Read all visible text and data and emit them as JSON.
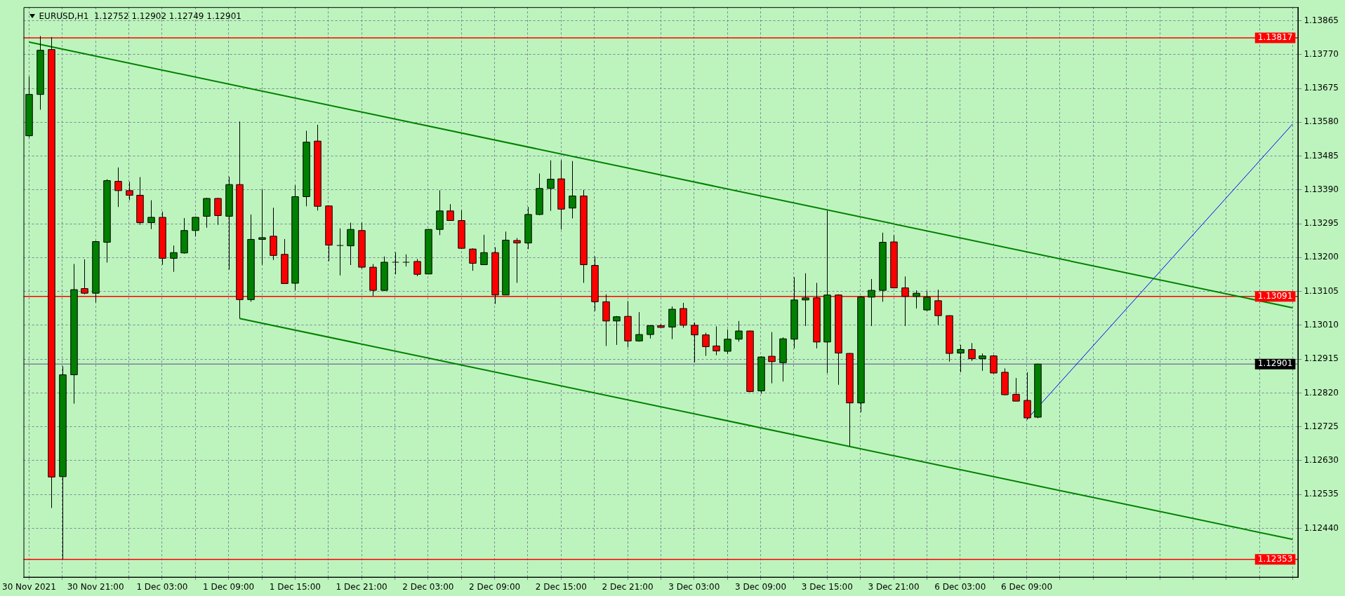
{
  "chart_data": {
    "type": "candlestick",
    "title": "EURUSD,H1  1.12752 1.12902 1.12749 1.12901",
    "categories": [
      "30 Nov 2021",
      null,
      null,
      null,
      null,
      null,
      "30 Nov 21:00",
      null,
      null,
      null,
      null,
      null,
      "1 Dec 03:00",
      null,
      null,
      null,
      null,
      null,
      "1 Dec 09:00",
      null,
      null,
      null,
      null,
      null,
      "1 Dec 15:00",
      null,
      null,
      null,
      null,
      null,
      "1 Dec 21:00",
      null,
      null,
      null,
      null,
      null,
      "2 Dec 03:00",
      null,
      null,
      null,
      null,
      null,
      "2 Dec 09:00",
      null,
      null,
      null,
      null,
      null,
      "2 Dec 15:00",
      null,
      null,
      null,
      null,
      null,
      "2 Dec 21:00",
      null,
      null,
      null,
      null,
      null,
      "3 Dec 03:00",
      null,
      null,
      null,
      null,
      null,
      "3 Dec 09:00",
      null,
      null,
      null,
      null,
      null,
      "3 Dec 15:00",
      null,
      null,
      null,
      null,
      null,
      "3 Dec 21:00",
      null,
      null,
      null,
      null,
      null,
      "6 Dec 03:00",
      null,
      null,
      null,
      null,
      null,
      "6 Dec 09:00",
      null,
      null,
      null,
      null,
      null,
      null,
      null,
      null,
      null,
      null,
      null,
      null,
      null,
      null,
      null,
      null,
      null,
      null,
      null,
      null,
      null,
      null,
      null,
      null
    ],
    "ohlc": [
      [
        1.13542,
        1.13708,
        1.13537,
        1.13658
      ],
      [
        1.13658,
        1.13822,
        1.13615,
        1.13782
      ],
      [
        1.13784,
        1.13819,
        1.12497,
        1.12584
      ],
      [
        1.12585,
        1.12895,
        1.12353,
        1.12871
      ],
      [
        1.12871,
        1.13182,
        1.1279,
        1.1311
      ],
      [
        1.13113,
        1.13195,
        1.13097,
        1.131
      ],
      [
        1.131,
        1.13247,
        1.13074,
        1.13245
      ],
      [
        1.13243,
        1.1342,
        1.13186,
        1.13416
      ],
      [
        1.13414,
        1.13453,
        1.13342,
        1.13388
      ],
      [
        1.13388,
        1.13413,
        1.13361,
        1.13375
      ],
      [
        1.13375,
        1.13426,
        1.13292,
        1.13298
      ],
      [
        1.13298,
        1.13361,
        1.1328,
        1.13313
      ],
      [
        1.13313,
        1.13329,
        1.1318,
        1.13198
      ],
      [
        1.13198,
        1.13234,
        1.1316,
        1.13214
      ],
      [
        1.13213,
        1.13311,
        1.13211,
        1.13276
      ],
      [
        1.13276,
        1.13315,
        1.13259,
        1.13313
      ],
      [
        1.13316,
        1.13368,
        1.13284,
        1.13366
      ],
      [
        1.13366,
        1.13368,
        1.13292,
        1.13318
      ],
      [
        1.13316,
        1.13427,
        1.13166,
        1.13405
      ],
      [
        1.13405,
        1.13582,
        1.13029,
        1.13082
      ],
      [
        1.13082,
        1.13321,
        1.13076,
        1.13251
      ],
      [
        1.13251,
        1.13391,
        1.1318,
        1.13256
      ],
      [
        1.1326,
        1.1334,
        1.13193,
        1.13206
      ],
      [
        1.13209,
        1.13252,
        1.13127,
        1.13127
      ],
      [
        1.13128,
        1.13403,
        1.13108,
        1.13371
      ],
      [
        1.13371,
        1.13556,
        1.13344,
        1.13524
      ],
      [
        1.13527,
        1.13573,
        1.13332,
        1.13344
      ],
      [
        1.13345,
        1.13345,
        1.1319,
        1.13235
      ],
      [
        1.13234,
        1.13282,
        1.1315,
        1.13234
      ],
      [
        1.13233,
        1.13298,
        1.13179,
        1.13279
      ],
      [
        1.13276,
        1.13298,
        1.13169,
        1.13173
      ],
      [
        1.13173,
        1.13182,
        1.13092,
        1.13108
      ],
      [
        1.13108,
        1.13203,
        1.13106,
        1.13187
      ],
      [
        1.13187,
        1.13215,
        1.13153,
        1.13187
      ],
      [
        1.13187,
        1.13209,
        1.13175,
        1.13187
      ],
      [
        1.13189,
        1.13196,
        1.13148,
        1.13153
      ],
      [
        1.13154,
        1.1328,
        1.13153,
        1.13279
      ],
      [
        1.13279,
        1.13389,
        1.13263,
        1.13331
      ],
      [
        1.13331,
        1.1335,
        1.13303,
        1.13304
      ],
      [
        1.13304,
        1.13333,
        1.13224,
        1.13226
      ],
      [
        1.13224,
        1.13226,
        1.13163,
        1.13184
      ],
      [
        1.1318,
        1.13264,
        1.13179,
        1.13214
      ],
      [
        1.13214,
        1.13229,
        1.1307,
        1.13095
      ],
      [
        1.13095,
        1.13273,
        1.13095,
        1.13249
      ],
      [
        1.13248,
        1.13255,
        1.13129,
        1.13241
      ],
      [
        1.13241,
        1.13342,
        1.13224,
        1.13321
      ],
      [
        1.13321,
        1.13436,
        1.13319,
        1.13394
      ],
      [
        1.13394,
        1.13473,
        1.13331,
        1.1342
      ],
      [
        1.13421,
        1.13473,
        1.13279,
        1.13336
      ],
      [
        1.13339,
        1.13471,
        1.1331,
        1.13373
      ],
      [
        1.13373,
        1.1339,
        1.13129,
        1.1318
      ],
      [
        1.13178,
        1.13203,
        1.1305,
        1.13076
      ],
      [
        1.13076,
        1.13097,
        1.12952,
        1.13022
      ],
      [
        1.13022,
        1.13036,
        1.12955,
        1.13034
      ],
      [
        1.13035,
        1.13078,
        1.12948,
        1.12966
      ],
      [
        1.12966,
        1.13047,
        1.12964,
        1.12984
      ],
      [
        1.12984,
        1.13011,
        1.12973,
        1.13009
      ],
      [
        1.13009,
        1.13013,
        1.13003,
        1.13004
      ],
      [
        1.13005,
        1.13063,
        1.12971,
        1.13055
      ],
      [
        1.13057,
        1.13073,
        1.13003,
        1.1301
      ],
      [
        1.1301,
        1.13018,
        1.12906,
        1.12983
      ],
      [
        1.12983,
        1.12989,
        1.12924,
        1.1295
      ],
      [
        1.12952,
        1.13007,
        1.12926,
        1.12938
      ],
      [
        1.12937,
        1.12998,
        1.12929,
        1.12971
      ],
      [
        1.12971,
        1.13022,
        1.12964,
        1.12994
      ],
      [
        1.12994,
        1.12995,
        1.12822,
        1.12824
      ],
      [
        1.12826,
        1.12923,
        1.12818,
        1.12921
      ],
      [
        1.12923,
        1.12991,
        1.12847,
        1.12908
      ],
      [
        1.12905,
        1.12976,
        1.12852,
        1.12972
      ],
      [
        1.12971,
        1.13145,
        1.12945,
        1.13081
      ],
      [
        1.13081,
        1.13156,
        1.13008,
        1.13087
      ],
      [
        1.13087,
        1.13129,
        1.12945,
        1.12963
      ],
      [
        1.12963,
        1.13331,
        1.12876,
        1.13095
      ],
      [
        1.13095,
        1.13097,
        1.12843,
        1.12932
      ],
      [
        1.12931,
        1.12932,
        1.12671,
        1.12792
      ],
      [
        1.12792,
        1.13092,
        1.12766,
        1.13089
      ],
      [
        1.13089,
        1.1314,
        1.13008,
        1.13108
      ],
      [
        1.13108,
        1.1327,
        1.13076,
        1.13243
      ],
      [
        1.13244,
        1.13263,
        1.13115,
        1.13115
      ],
      [
        1.13115,
        1.13147,
        1.13008,
        1.13091
      ],
      [
        1.13091,
        1.13108,
        1.13057,
        1.131
      ],
      [
        1.13053,
        1.13106,
        1.1305,
        1.13089
      ],
      [
        1.13079,
        1.1311,
        1.13011,
        1.13037
      ],
      [
        1.13037,
        1.13038,
        1.12908,
        1.12931
      ],
      [
        1.12932,
        1.12955,
        1.12878,
        1.12942
      ],
      [
        1.12942,
        1.1296,
        1.1291,
        1.12916
      ],
      [
        1.12916,
        1.12931,
        1.12882,
        1.12924
      ],
      [
        1.12924,
        1.12927,
        1.12874,
        1.12876
      ],
      [
        1.12878,
        1.12889,
        1.12813,
        1.12815
      ],
      [
        1.12816,
        1.12862,
        1.12797,
        1.12797
      ],
      [
        1.12799,
        1.12878,
        1.12745,
        1.1275
      ],
      [
        1.12752,
        1.12902,
        1.12749,
        1.12901
      ],
      null,
      null,
      null,
      null,
      null,
      null,
      null,
      null,
      null,
      null,
      null,
      null,
      null,
      null,
      null,
      null,
      null,
      null,
      null,
      null,
      null,
      null,
      null
    ],
    "series": [
      {
        "type": "line",
        "color": "#008000",
        "values": [
          1.13805,
          null,
          null,
          null,
          null,
          null,
          null,
          null,
          null,
          null,
          null,
          null,
          null,
          null,
          null,
          null,
          null,
          null,
          null,
          null,
          null,
          null,
          null,
          null,
          null,
          null,
          null,
          null,
          null,
          null,
          null,
          null,
          null,
          null,
          null,
          null,
          null,
          null,
          null,
          null,
          null,
          null,
          null,
          null,
          null,
          null,
          null,
          null,
          null,
          null,
          null,
          null,
          null,
          null,
          null,
          null,
          null,
          null,
          null,
          null,
          null,
          null,
          null,
          null,
          null,
          null,
          null,
          null,
          null,
          null,
          null,
          null,
          null,
          null,
          null,
          null,
          null,
          null,
          null,
          null,
          null,
          null,
          null,
          null,
          null,
          null,
          null,
          null,
          null,
          null,
          null,
          null,
          null,
          null,
          null,
          null,
          null,
          null,
          null,
          null,
          null,
          null,
          null,
          null,
          null,
          null,
          null,
          null,
          null,
          null,
          null,
          null,
          null,
          null,
          1.13059
        ]
      },
      {
        "type": "line",
        "color": "#008000",
        "values": [
          null,
          null,
          null,
          null,
          null,
          null,
          null,
          null,
          null,
          null,
          null,
          null,
          null,
          null,
          null,
          null,
          null,
          null,
          null,
          1.13029,
          null,
          null,
          null,
          null,
          null,
          null,
          null,
          null,
          null,
          null,
          null,
          null,
          null,
          null,
          null,
          null,
          null,
          null,
          null,
          null,
          null,
          null,
          null,
          null,
          null,
          null,
          null,
          null,
          null,
          null,
          null,
          null,
          null,
          null,
          null,
          null,
          null,
          null,
          null,
          null,
          null,
          null,
          null,
          null,
          null,
          null,
          null,
          null,
          null,
          null,
          null,
          null,
          null,
          null,
          null,
          null,
          null,
          null,
          null,
          null,
          null,
          null,
          null,
          null,
          null,
          null,
          null,
          null,
          null,
          null,
          null,
          null,
          null,
          null,
          null,
          null,
          null,
          null,
          null,
          null,
          null,
          null,
          null,
          null,
          null,
          null,
          null,
          null,
          null,
          null,
          null,
          null,
          null,
          null,
          1.12409
        ]
      },
      {
        "type": "line",
        "color": "#0000ff",
        "values": [
          null,
          null,
          null,
          null,
          null,
          null,
          null,
          null,
          null,
          null,
          null,
          null,
          null,
          null,
          null,
          null,
          null,
          null,
          null,
          null,
          null,
          null,
          null,
          null,
          null,
          null,
          null,
          null,
          null,
          null,
          null,
          null,
          null,
          null,
          null,
          null,
          null,
          null,
          null,
          null,
          null,
          null,
          null,
          null,
          null,
          null,
          null,
          null,
          null,
          null,
          null,
          null,
          null,
          null,
          null,
          null,
          null,
          null,
          null,
          null,
          null,
          null,
          null,
          null,
          null,
          null,
          null,
          null,
          null,
          null,
          null,
          null,
          null,
          null,
          null,
          null,
          null,
          null,
          null,
          null,
          null,
          null,
          null,
          null,
          null,
          null,
          null,
          null,
          null,
          null,
          1.12745,
          null,
          null,
          null,
          null,
          null,
          null,
          null,
          null,
          null,
          null,
          null,
          null,
          null,
          null,
          null,
          null,
          null,
          null,
          null,
          null,
          null,
          null,
          null,
          1.13575
        ]
      }
    ],
    "ylim": [
      1.12302,
      1.13903
    ],
    "yticks": [
      {
        "value": 1.1244,
        "label": "1.12440"
      },
      1.12535,
      {
        "value": 1.1263,
        "label": "1.12630"
      },
      1.12725,
      {
        "value": 1.1282,
        "label": "1.12820"
      },
      1.12915,
      {
        "value": 1.1301,
        "label": "1.13010"
      },
      1.13105,
      {
        "value": 1.132,
        "label": "1.13200"
      },
      1.13295,
      {
        "value": 1.1339,
        "label": "1.13390"
      },
      1.13485,
      {
        "value": 1.1358,
        "label": "1.13580"
      },
      1.13675,
      {
        "value": 1.1377,
        "label": "1.13770"
      },
      1.13865
    ],
    "ref_lines": [
      {
        "axis": "y",
        "value": 1.13817,
        "label": "1.13817",
        "color": "#ff0000"
      },
      {
        "axis": "y",
        "value": 1.13091,
        "label": "1.13091",
        "color": "#ff0000"
      },
      {
        "axis": "y",
        "value": 1.12353,
        "label": "1.12353",
        "color": "#ff0000"
      },
      {
        "axis": "y",
        "value": 1.12901,
        "label": "1.12901",
        "color": "#7f7f9f"
      }
    ],
    "grid": true,
    "legend": false
  }
}
